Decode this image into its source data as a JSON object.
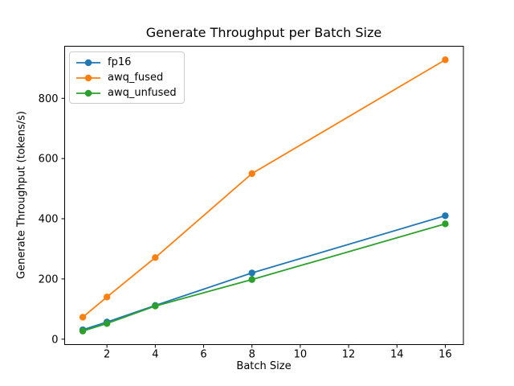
{
  "chart_data": {
    "type": "line",
    "title": "Generate Throughput per Batch Size",
    "xlabel": "Batch Size",
    "ylabel": "Generate Throughput (tokens/s)",
    "x": [
      1,
      2,
      4,
      8,
      16
    ],
    "series": [
      {
        "name": "fp16",
        "color": "#1f77b4",
        "values": [
          31,
          57,
          112,
          220,
          410
        ]
      },
      {
        "name": "awq_fused",
        "color": "#ff7f0e",
        "values": [
          73,
          140,
          271,
          550,
          928
        ]
      },
      {
        "name": "awq_unfused",
        "color": "#2ca02c",
        "values": [
          27,
          52,
          110,
          198,
          383
        ]
      }
    ],
    "xticks": [
      2,
      4,
      6,
      8,
      10,
      12,
      14,
      16
    ],
    "yticks": [
      0,
      200,
      400,
      600,
      800
    ],
    "xlim": [
      0.25,
      16.75
    ],
    "ylim": [
      -18,
      973
    ],
    "grid": false,
    "legend_position": "upper left",
    "marker": "o",
    "axis_color": "#000000"
  }
}
